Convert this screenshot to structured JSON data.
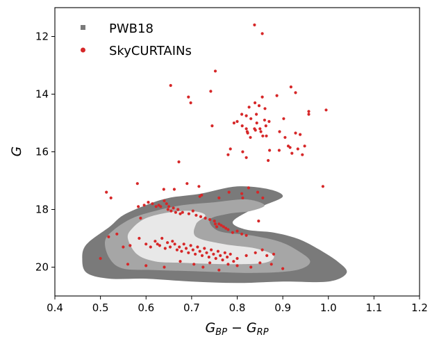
{
  "chart_data": {
    "type": "scatter",
    "title": "",
    "xlabel_main": "G",
    "xlabel_sub1": "BP",
    "xlabel_mid": " − G",
    "xlabel_sub2": "RP",
    "ylabel": "G",
    "xlim": [
      0.4,
      1.2
    ],
    "ylim": [
      21.0,
      11.0
    ],
    "y_inverted": true,
    "grid": false,
    "legend_position": "top-left",
    "x_ticks": [
      "0.4",
      "0.5",
      "0.6",
      "0.7",
      "0.8",
      "0.9",
      "1.0",
      "1.1",
      "1.2"
    ],
    "y_ticks": [
      "12",
      "14",
      "16",
      "18",
      "20"
    ],
    "series": [
      {
        "name": "PWB18",
        "kind": "density-contours",
        "colors": [
          "#7a7a7a",
          "#a6a6a6",
          "#e8e8e8"
        ],
        "levels": [
          [
            [
              0.47,
              19.2
            ],
            [
              0.52,
              18.6
            ],
            [
              0.55,
              18.2
            ],
            [
              0.6,
              17.85
            ],
            [
              0.65,
              17.6
            ],
            [
              0.72,
              17.45
            ],
            [
              0.8,
              17.2
            ],
            [
              0.87,
              17.3
            ],
            [
              0.9,
              17.55
            ],
            [
              0.86,
              17.85
            ],
            [
              0.82,
              18.1
            ],
            [
              0.79,
              18.45
            ],
            [
              0.82,
              18.7
            ],
            [
              0.88,
              18.8
            ],
            [
              0.93,
              19.0
            ],
            [
              0.97,
              19.3
            ],
            [
              1.02,
              19.8
            ],
            [
              1.04,
              20.2
            ],
            [
              1.0,
              20.5
            ],
            [
              0.9,
              20.5
            ],
            [
              0.8,
              20.55
            ],
            [
              0.7,
              20.5
            ],
            [
              0.6,
              20.4
            ],
            [
              0.52,
              20.4
            ],
            [
              0.47,
              20.2
            ],
            [
              0.46,
              19.7
            ]
          ],
          [
            [
              0.51,
              19.1
            ],
            [
              0.53,
              18.7
            ],
            [
              0.57,
              18.3
            ],
            [
              0.62,
              18.05
            ],
            [
              0.68,
              17.85
            ],
            [
              0.75,
              17.75
            ],
            [
              0.82,
              17.65
            ],
            [
              0.86,
              17.85
            ],
            [
              0.83,
              18.05
            ],
            [
              0.78,
              18.15
            ],
            [
              0.74,
              18.35
            ],
            [
              0.76,
              18.75
            ],
            [
              0.83,
              18.9
            ],
            [
              0.89,
              19.1
            ],
            [
              0.93,
              19.4
            ],
            [
              0.96,
              19.8
            ],
            [
              0.93,
              20.1
            ],
            [
              0.84,
              20.2
            ],
            [
              0.72,
              20.15
            ],
            [
              0.62,
              20.1
            ],
            [
              0.55,
              20.05
            ],
            [
              0.52,
              19.7
            ]
          ],
          [
            [
              0.56,
              19.0
            ],
            [
              0.57,
              18.65
            ],
            [
              0.6,
              18.3
            ],
            [
              0.65,
              18.1
            ],
            [
              0.7,
              18.05
            ],
            [
              0.73,
              18.2
            ],
            [
              0.71,
              18.5
            ],
            [
              0.71,
              18.95
            ],
            [
              0.77,
              19.2
            ],
            [
              0.84,
              19.35
            ],
            [
              0.88,
              19.6
            ],
            [
              0.86,
              19.85
            ],
            [
              0.78,
              19.9
            ],
            [
              0.68,
              19.85
            ],
            [
              0.62,
              19.8
            ],
            [
              0.58,
              19.55
            ]
          ]
        ]
      },
      {
        "name": "SkyCURTAINs",
        "kind": "scatter",
        "color": "#d62728",
        "x": [
          0.838,
          0.855,
          0.752,
          0.654,
          0.742,
          0.698,
          0.693,
          0.855,
          0.918,
          0.928,
          0.887,
          0.839,
          0.826,
          0.848,
          0.861,
          0.81,
          0.82,
          0.83,
          0.8,
          0.842,
          0.86,
          0.863,
          0.843,
          0.87,
          0.902,
          0.957,
          0.957,
          0.995,
          0.838,
          0.793,
          0.811,
          0.745,
          0.82,
          0.822,
          0.823,
          0.85,
          0.852,
          0.84,
          0.829,
          0.856,
          0.864,
          0.893,
          0.905,
          0.928,
          0.938,
          0.948,
          0.892,
          0.912,
          0.916,
          0.785,
          0.812,
          0.871,
          0.92,
          0.933,
          0.943,
          0.672,
          0.82,
          0.988,
          0.78,
          0.868,
          0.825,
          0.523,
          0.513,
          0.581,
          0.639,
          0.69,
          0.662,
          0.716,
          0.722,
          0.718,
          0.76,
          0.782,
          0.81,
          0.856,
          0.812,
          0.845,
          0.847,
          0.583,
          0.588,
          0.596,
          0.605,
          0.614,
          0.622,
          0.628,
          0.632,
          0.64,
          0.645,
          0.648,
          0.65,
          0.655,
          0.66,
          0.665,
          0.67,
          0.675,
          0.68,
          0.694,
          0.703,
          0.71,
          0.72,
          0.73,
          0.74,
          0.75,
          0.752,
          0.755,
          0.76,
          0.765,
          0.77,
          0.775,
          0.78,
          0.79,
          0.8,
          0.81,
          0.82,
          0.518,
          0.536,
          0.55,
          0.565,
          0.585,
          0.6,
          0.61,
          0.62,
          0.625,
          0.63,
          0.635,
          0.642,
          0.647,
          0.653,
          0.658,
          0.663,
          0.668,
          0.673,
          0.678,
          0.683,
          0.688,
          0.693,
          0.698,
          0.703,
          0.708,
          0.713,
          0.718,
          0.723,
          0.728,
          0.733,
          0.738,
          0.743,
          0.748,
          0.753,
          0.758,
          0.763,
          0.768,
          0.773,
          0.778,
          0.785,
          0.792,
          0.8,
          0.82,
          0.84,
          0.855,
          0.865,
          0.88,
          0.5,
          0.56,
          0.6,
          0.64,
          0.675,
          0.705,
          0.725,
          0.74,
          0.76,
          0.78,
          0.8,
          0.83,
          0.85,
          0.875,
          0.9
        ],
        "y": [
          11.6,
          11.9,
          13.2,
          13.7,
          13.9,
          14.3,
          14.1,
          14.1,
          13.75,
          13.95,
          14.05,
          14.3,
          14.45,
          14.4,
          14.5,
          14.7,
          14.75,
          14.85,
          14.95,
          14.7,
          14.9,
          15.1,
          15.0,
          14.95,
          14.85,
          14.6,
          14.7,
          14.55,
          15.2,
          15.0,
          15.1,
          15.1,
          15.2,
          15.3,
          15.35,
          15.2,
          15.3,
          15.25,
          15.5,
          15.45,
          15.45,
          15.3,
          15.5,
          15.35,
          15.4,
          15.8,
          15.95,
          15.8,
          15.85,
          15.9,
          16.0,
          15.95,
          16.05,
          15.9,
          16.1,
          16.35,
          16.2,
          17.2,
          16.1,
          16.3,
          17.25,
          17.6,
          17.4,
          17.1,
          17.3,
          17.1,
          17.3,
          17.2,
          17.5,
          17.55,
          17.6,
          17.4,
          17.45,
          17.6,
          17.6,
          17.4,
          18.4,
          17.9,
          18.3,
          17.85,
          17.75,
          17.8,
          17.9,
          17.85,
          17.9,
          17.7,
          17.8,
          18.0,
          17.9,
          18.05,
          17.95,
          18.1,
          18.0,
          18.15,
          18.1,
          18.15,
          18.05,
          18.2,
          18.25,
          18.3,
          18.35,
          18.4,
          18.5,
          18.6,
          18.5,
          18.55,
          18.6,
          18.65,
          18.7,
          18.8,
          18.75,
          18.85,
          18.9,
          18.95,
          18.85,
          19.3,
          19.25,
          19.0,
          19.2,
          19.3,
          19.1,
          19.2,
          19.25,
          19.0,
          19.35,
          19.15,
          19.3,
          19.1,
          19.2,
          19.4,
          19.3,
          19.45,
          19.2,
          19.35,
          19.5,
          19.25,
          19.4,
          19.55,
          19.3,
          19.45,
          19.6,
          19.35,
          19.5,
          19.65,
          19.4,
          19.55,
          19.7,
          19.45,
          19.6,
          19.75,
          19.5,
          19.65,
          19.55,
          19.8,
          19.7,
          19.6,
          19.5,
          19.4,
          19.6,
          19.55,
          19.7,
          19.9,
          19.95,
          20.0,
          19.8,
          19.9,
          20.0,
          19.85,
          20.1,
          19.9,
          19.95,
          20.0,
          19.85,
          19.9,
          20.05
        ]
      }
    ]
  }
}
